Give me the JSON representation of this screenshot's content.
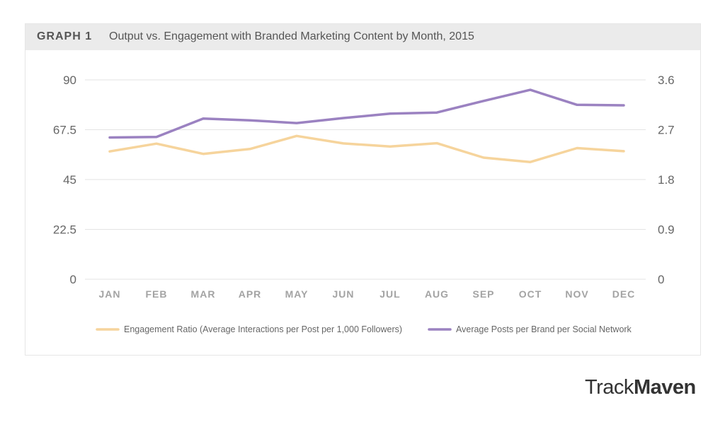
{
  "header": {
    "tag": "GRAPH 1",
    "title": "Output vs. Engagement with Branded Marketing Content by Month, 2015"
  },
  "brand": {
    "part1": "Track",
    "part2": "Maven"
  },
  "colors": {
    "engagement": "#f6d49c",
    "posts": "#9b82c1",
    "grid": "#e3e3e3",
    "tick_text": "#666666",
    "month_text": "#a3a3a3",
    "legend_text": "#666666"
  },
  "chart_data": {
    "type": "line",
    "categories": [
      "JAN",
      "FEB",
      "MAR",
      "APR",
      "MAY",
      "JUN",
      "JUL",
      "AUG",
      "SEP",
      "OCT",
      "NOV",
      "DEC"
    ],
    "y_left": {
      "ticks": [
        "0",
        "22.5",
        "45",
        "67.5",
        "90"
      ],
      "range": [
        0,
        90
      ]
    },
    "y_right": {
      "ticks": [
        "0",
        "0.9",
        "1.8",
        "2.7",
        "3.6"
      ],
      "range": [
        0,
        3.6
      ]
    },
    "grid": true,
    "legend_position": "bottom",
    "series": [
      {
        "name": "Engagement Ratio (Average Interactions per Post per 1,000 Followers)",
        "axis": "left",
        "values": [
          57.7,
          61.2,
          56.6,
          58.8,
          64.7,
          61.3,
          59.9,
          61.4,
          54.9,
          52.9,
          59.2,
          57.8
        ]
      },
      {
        "name": "Average Posts per Brand per Social Network",
        "axis": "right",
        "values": [
          2.56,
          2.57,
          2.9,
          2.87,
          2.82,
          2.91,
          2.99,
          3.01,
          3.22,
          3.42,
          3.15,
          3.14
        ]
      }
    ]
  }
}
